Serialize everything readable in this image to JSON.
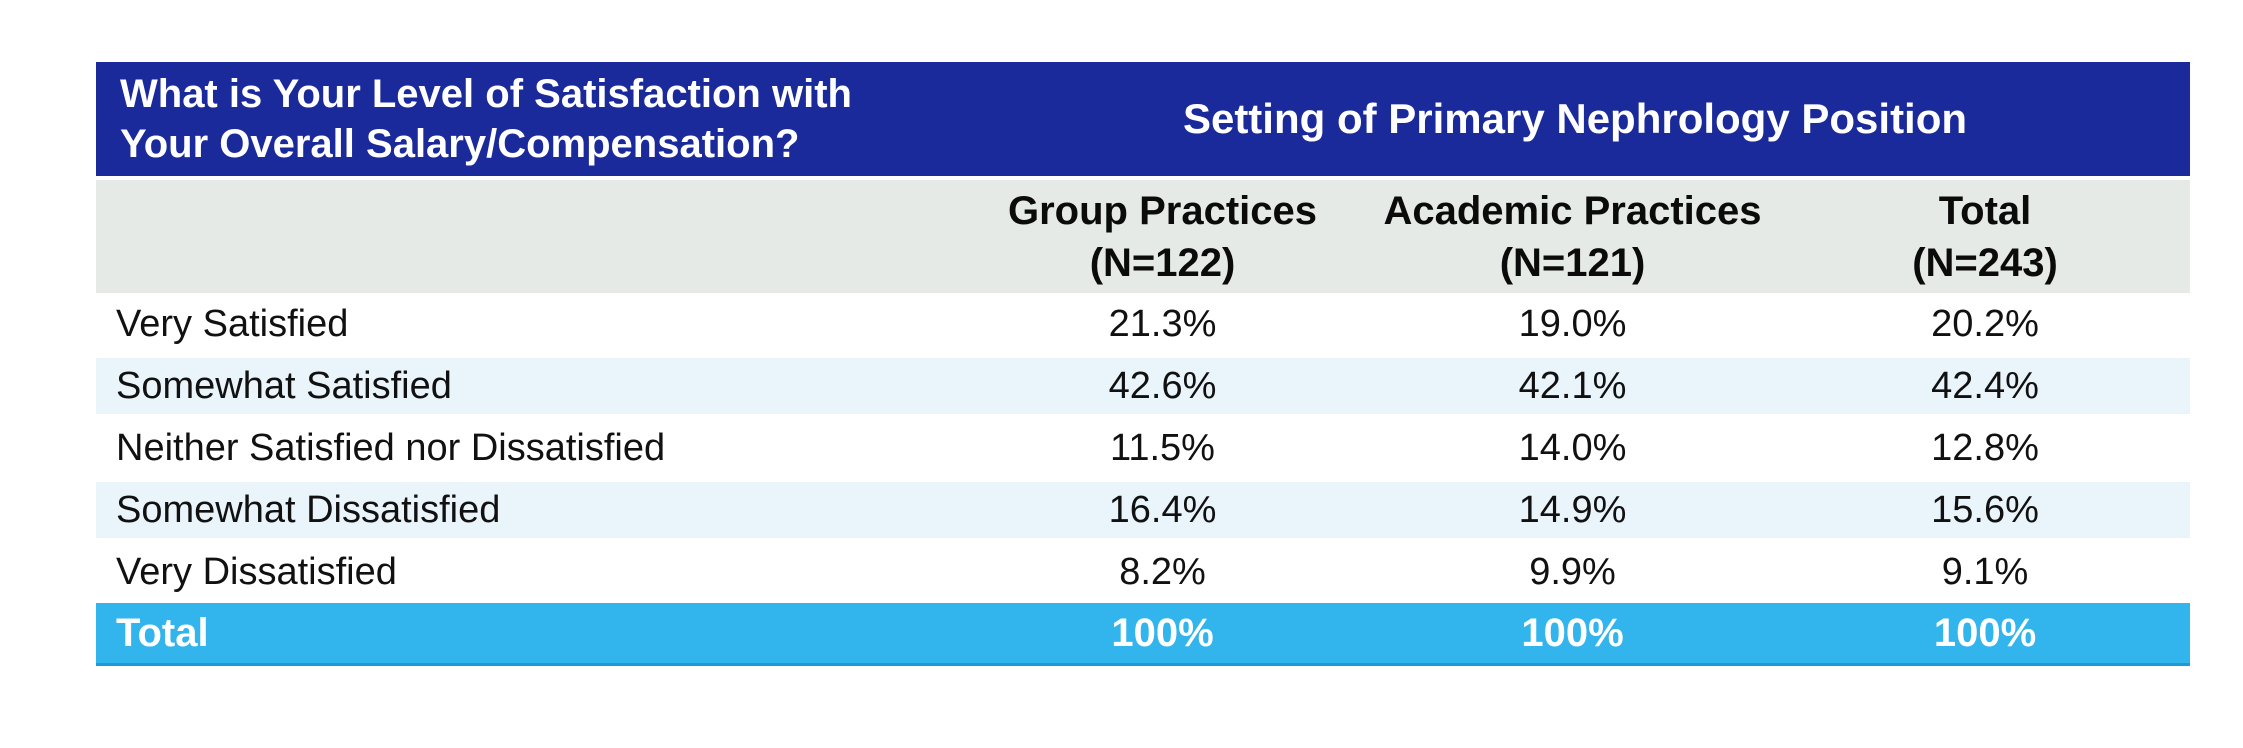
{
  "accent_colors": {
    "header_blue": "#1B2A9B",
    "subheader_gray": "#E5EAE7",
    "row_stripe_blue": "#E9F4FB",
    "total_cyan": "#32B4EC",
    "total_bottom_border": "#1E9AD6"
  },
  "table": {
    "question": "What is Your Level of Satisfaction with\nYour Overall Salary/Compensation?",
    "group_header": "Setting of Primary Nephrology Position",
    "columns": [
      {
        "name": "Group Practices",
        "n": "(N=122)"
      },
      {
        "name": "Academic Practices",
        "n": "(N=121)"
      },
      {
        "name": "Total",
        "n": "(N=243)"
      }
    ],
    "rows": [
      {
        "label": "Very Satisfied",
        "values": [
          "21.3%",
          "19.0%",
          "20.2%"
        ]
      },
      {
        "label": "Somewhat Satisfied",
        "values": [
          "42.6%",
          "42.1%",
          "42.4%"
        ]
      },
      {
        "label": "Neither Satisfied nor Dissatisfied",
        "values": [
          "11.5%",
          "14.0%",
          "12.8%"
        ]
      },
      {
        "label": "Somewhat Dissatisfied",
        "values": [
          "16.4%",
          "14.9%",
          "15.6%"
        ]
      },
      {
        "label": "Very Dissatisfied",
        "values": [
          "8.2%",
          "9.9%",
          "9.1%"
        ]
      }
    ],
    "total_row": {
      "label": "Total",
      "values": [
        "100%",
        "100%",
        "100%"
      ]
    }
  },
  "chart_data": {
    "type": "table",
    "title": "What is Your Level of Satisfaction with Your Overall Salary/Compensation?",
    "group_title": "Setting of Primary Nephrology Position",
    "columns": [
      "Group Practices (N=122)",
      "Academic Practices (N=121)",
      "Total (N=243)"
    ],
    "categories": [
      "Very Satisfied",
      "Somewhat Satisfied",
      "Neither Satisfied nor Dissatisfied",
      "Somewhat Dissatisfied",
      "Very Dissatisfied",
      "Total"
    ],
    "series": [
      {
        "name": "Group Practices (N=122)",
        "values": [
          21.3,
          42.6,
          11.5,
          16.4,
          8.2,
          100
        ]
      },
      {
        "name": "Academic Practices (N=121)",
        "values": [
          19.0,
          42.1,
          14.0,
          14.9,
          9.9,
          100
        ]
      },
      {
        "name": "Total (N=243)",
        "values": [
          20.2,
          42.4,
          12.8,
          15.6,
          9.1,
          100
        ]
      }
    ]
  }
}
